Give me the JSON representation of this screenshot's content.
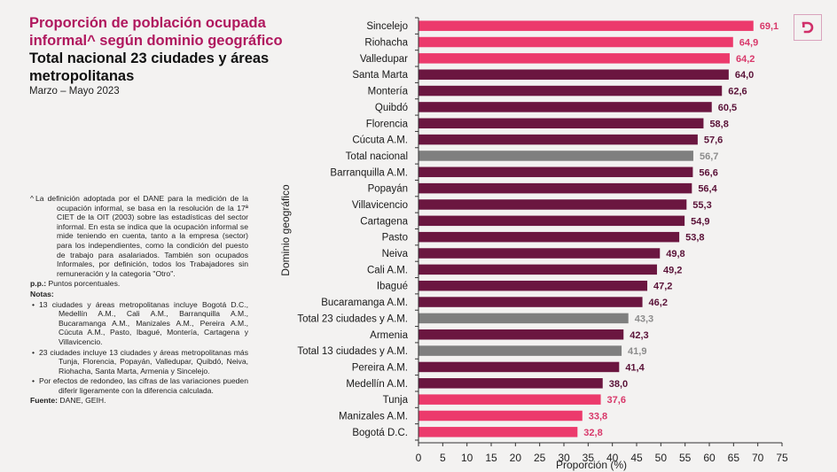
{
  "header": {
    "title_line1": "Proporción de población ocupada",
    "title_line2": "informal^ según dominio geográfico",
    "subtitle_line1": "Total nacional 23 ciudades y áreas",
    "subtitle_line2": "metropolitanas",
    "period": "Marzo – Mayo 2023"
  },
  "notes": {
    "definition_marker": "^",
    "definition": "La definición adoptada por el DANE para la medición de la ocupación informal, se basa en la resolución de la 17ª CIET de la OIT (2003) sobre las estadísticas del sector informal. En esta se indica que la ocupación informal se mide teniendo en cuenta, tanto a la empresa (sector) para los independientes, como la condición del puesto de trabajo para asalariados. También son ocupados Informales, por definición,  todos los Trabajadores sin remuneración y la categoria \"Otro\".",
    "pp_label": "p.p.:",
    "pp_text": " Puntos porcentuales.",
    "notas_label": "Notas:",
    "bullets": [
      "13 ciudades y áreas metropolitanas incluye Bogotá D.C., Medellín A.M., Cali A.M., Barranquilla A.M., Bucaramanga A.M., Manizales A.M., Pereira A.M., Cúcuta A.M., Pasto, Ibagué, Montería, Cartagena y Villavicencio.",
      "23 ciudades incluye 13 ciudades y áreas metropolitanas más Tunja, Florencia, Popayán, Valledupar, Quibdó, Neiva, Riohacha, Santa Marta, Armenia y Sincelejo.",
      "Por efectos de redondeo, las cifras de las variaciones pueden diferir ligeramente con la diferencia calculada."
    ],
    "fuente_label": "Fuente:",
    "fuente_text": " DANE, GEIH."
  },
  "logo": {
    "icon": "dane-d-logo",
    "color": "#d0306a"
  },
  "colors": {
    "highlight": "#ec3a6c",
    "regular": "#6b1640",
    "total": "#7f7f7f",
    "label_highlight": "#d8386a",
    "label_regular": "#5a1238",
    "label_total": "#8c8c8c"
  },
  "chart_data": {
    "type": "bar",
    "orientation": "horizontal",
    "title": "Proporción de población ocupada informal^ según dominio geográfico",
    "xlabel": "Proporción (%)",
    "ylabel": "Dominio geográfico",
    "xlim": [
      0,
      75
    ],
    "xticks": [
      0,
      5,
      10,
      15,
      20,
      25,
      30,
      35,
      40,
      45,
      50,
      55,
      60,
      65,
      70,
      75
    ],
    "grid": false,
    "legend": "none",
    "decimal_separator": ",",
    "categories": [
      "Sincelejo",
      "Riohacha",
      "Valledupar",
      "Santa Marta",
      "Montería",
      "Quibdó",
      "Florencia",
      "Cúcuta A.M.",
      "Total nacional",
      "Barranquilla A.M.",
      "Popayán",
      "Villavicencio",
      "Cartagena",
      "Pasto",
      "Neiva",
      "Cali A.M.",
      "Ibagué",
      "Bucaramanga A.M.",
      "Total 23 ciudades y A.M.",
      "Armenia",
      "Total 13 ciudades y A.M.",
      "Pereira A.M.",
      "Medellín A.M.",
      "Tunja",
      "Manizales A.M.",
      "Bogotá D.C."
    ],
    "values": [
      69.1,
      64.9,
      64.2,
      64.0,
      62.6,
      60.5,
      58.8,
      57.6,
      56.7,
      56.6,
      56.4,
      55.3,
      54.9,
      53.8,
      49.8,
      49.2,
      47.2,
      46.2,
      43.3,
      42.3,
      41.9,
      41.4,
      38.0,
      37.6,
      33.8,
      32.8
    ],
    "groups": [
      "highlight",
      "highlight",
      "highlight",
      "regular",
      "regular",
      "regular",
      "regular",
      "regular",
      "total",
      "regular",
      "regular",
      "regular",
      "regular",
      "regular",
      "regular",
      "regular",
      "regular",
      "regular",
      "total",
      "regular",
      "total",
      "regular",
      "regular",
      "highlight",
      "highlight",
      "highlight"
    ]
  }
}
